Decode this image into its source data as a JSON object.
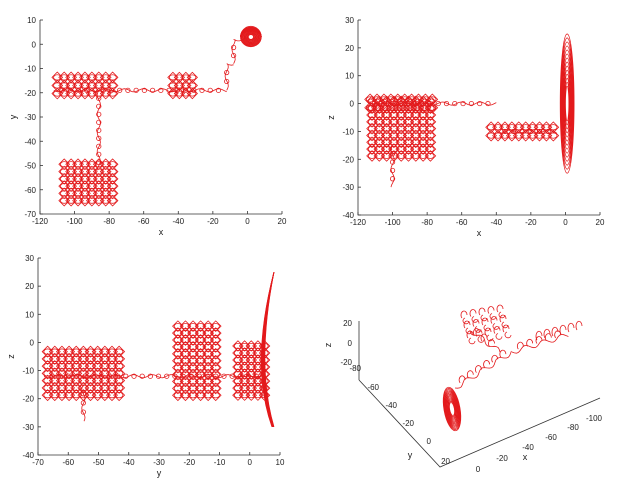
{
  "figure": {
    "accent_color": "#e31a1c"
  },
  "chart_data": [
    {
      "type": "line",
      "panel": "top-left",
      "xlabel": "x",
      "ylabel": "y",
      "xlim": [
        -120,
        20
      ],
      "ylim": [
        -70,
        10
      ],
      "xticks": [
        -120,
        -100,
        -80,
        -60,
        -40,
        -20,
        0,
        20
      ],
      "yticks": [
        10,
        0,
        -10,
        -20,
        -30,
        -40,
        -50,
        -60,
        -70
      ],
      "series": [
        {
          "segments": [
            {
              "kind": "line",
              "x": [
                -112,
                -12
              ],
              "y": [
                -19,
                -19
              ]
            },
            {
              "kind": "line",
              "x": [
                -12,
                -12
              ],
              "y": [
                -19,
                -8
              ]
            },
            {
              "kind": "line",
              "x": [
                -12,
                -8
              ],
              "y": [
                -8,
                -8
              ]
            },
            {
              "kind": "line",
              "x": [
                -8,
                -8
              ],
              "y": [
                -8,
                2
              ]
            },
            {
              "kind": "line",
              "x": [
                -8,
                0
              ],
              "y": [
                2,
                2
              ]
            },
            {
              "kind": "line",
              "x": [
                -86,
                -86
              ],
              "y": [
                -19,
                -52
              ]
            },
            {
              "kind": "cluster",
              "x": [
                -112,
                -76
              ],
              "y": [
                -22,
                -12
              ]
            },
            {
              "kind": "cluster",
              "x": [
                -45,
                -30
              ],
              "y": [
                -22,
                -12
              ]
            },
            {
              "kind": "cluster",
              "x": [
                -108,
                -76
              ],
              "y": [
                -66,
                -48
              ]
            },
            {
              "kind": "attractor",
              "cx": 2,
              "cy": 3,
              "rx": 6,
              "ry": 4
            }
          ]
        }
      ]
    },
    {
      "type": "line",
      "panel": "top-right",
      "xlabel": "x",
      "ylabel": "z",
      "xlim": [
        -120,
        20
      ],
      "ylim": [
        -40,
        30
      ],
      "xticks": [
        -120,
        -100,
        -80,
        -60,
        -40,
        -20,
        0,
        20
      ],
      "yticks": [
        30,
        20,
        10,
        0,
        -10,
        -20,
        -30,
        -40
      ],
      "series": [
        {
          "segments": [
            {
              "kind": "line",
              "x": [
                -112,
                -40
              ],
              "y": [
                0,
                0
              ]
            },
            {
              "kind": "line",
              "x": [
                -40,
                -5
              ],
              "y": [
                -10,
                -10
              ]
            },
            {
              "kind": "line",
              "x": [
                -100,
                -100
              ],
              "y": [
                -15,
                -30
              ]
            },
            {
              "kind": "cluster",
              "x": [
                -114,
                -76
              ],
              "y": [
                -20,
                2
              ]
            },
            {
              "kind": "cluster",
              "x": [
                -115,
                -75
              ],
              "y": [
                -3,
                3
              ]
            },
            {
              "kind": "cluster",
              "x": [
                -45,
                -5
              ],
              "y": [
                -13,
                -7
              ]
            },
            {
              "kind": "attractor",
              "cx": 1,
              "cy": 0,
              "rx": 4,
              "ry": 25
            }
          ]
        }
      ]
    },
    {
      "type": "line",
      "panel": "bottom-left",
      "xlabel": "y",
      "ylabel": "z",
      "xlim": [
        -70,
        10
      ],
      "ylim": [
        -40,
        30
      ],
      "xticks": [
        -70,
        -60,
        -50,
        -40,
        -30,
        -20,
        -10,
        0,
        10
      ],
      "yticks": [
        30,
        20,
        10,
        0,
        -10,
        -20,
        -30,
        -40
      ],
      "series": [
        {
          "segments": [
            {
              "kind": "line",
              "x": [
                -68,
                5
              ],
              "y": [
                -12,
                -12
              ]
            },
            {
              "kind": "line",
              "x": [
                -55,
                -55
              ],
              "y": [
                -15,
                -28
              ]
            },
            {
              "kind": "cluster",
              "x": [
                -68,
                -42
              ],
              "y": [
                -20,
                -2
              ]
            },
            {
              "kind": "cluster",
              "x": [
                -25,
                -10
              ],
              "y": [
                -20,
                7
              ]
            },
            {
              "kind": "cluster",
              "x": [
                -5,
                6
              ],
              "y": [
                -20,
                0
              ]
            },
            {
              "kind": "attractor-wedge",
              "x": [
                2,
                8
              ],
              "y": [
                -30,
                25
              ]
            }
          ]
        }
      ]
    },
    {
      "type": "line",
      "panel": "bottom-right-3d",
      "xlabel": "x",
      "ylabel": "y",
      "zlabel": "z",
      "xticks": [
        0,
        -20,
        -40,
        -60,
        -80,
        -100
      ],
      "yticks": [
        20,
        0,
        -20,
        -40,
        -60,
        -80
      ],
      "zticks": [
        20,
        0,
        -20
      ],
      "series": [
        {
          "name": ""
        }
      ]
    }
  ]
}
